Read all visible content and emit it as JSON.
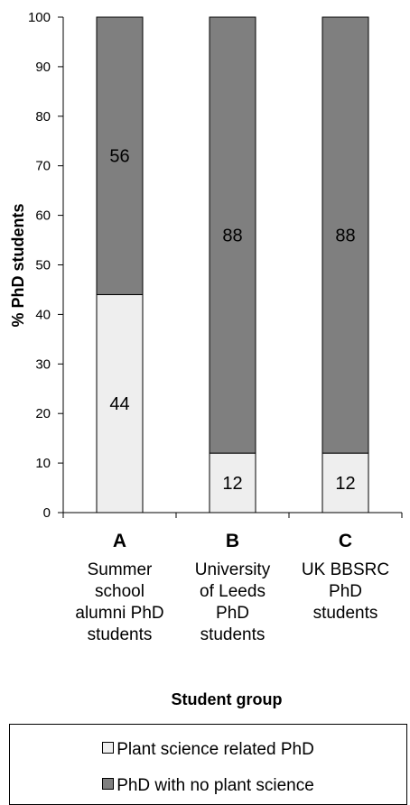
{
  "chart_data": {
    "type": "bar",
    "stacked": true,
    "categories": [
      "A",
      "B",
      "C"
    ],
    "category_descriptions": [
      [
        "Summer",
        "school",
        "alumni PhD",
        "students"
      ],
      [
        "University",
        "of Leeds",
        "PhD",
        "students"
      ],
      [
        "UK BBSRC",
        "PhD",
        "students"
      ]
    ],
    "series": [
      {
        "name": "Plant science related PhD",
        "values": [
          44,
          12,
          12
        ],
        "labels": [
          "44",
          "12",
          "12"
        ],
        "color": "#eeeeee"
      },
      {
        "name": "PhD with no plant science",
        "values": [
          56,
          88,
          88
        ],
        "labels": [
          "56",
          "88",
          "88"
        ],
        "color": "#7f7f7f"
      }
    ],
    "xlabel": "Student group",
    "ylabel": "% PhD students",
    "ylim": [
      0,
      100
    ],
    "yticks": [
      "0",
      "10",
      "20",
      "30",
      "40",
      "50",
      "60",
      "70",
      "80",
      "90",
      "100"
    ],
    "grid": false,
    "legend_position": "bottom"
  },
  "legend": {
    "items": [
      {
        "label": "Plant science related PhD",
        "color": "#eeeeee"
      },
      {
        "label": "PhD with no plant science",
        "color": "#7f7f7f"
      }
    ]
  }
}
